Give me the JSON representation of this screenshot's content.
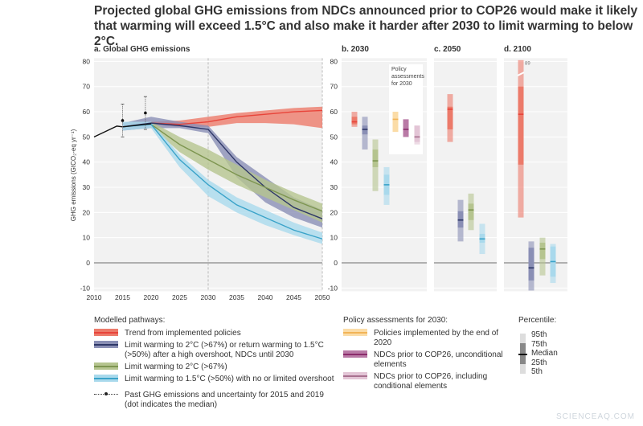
{
  "title": "Projected global GHG emissions from NDCs announced prior to COP26 would make it likely that warming will exceed 1.5°C and also make it harder after 2030 to limit warming to below 2°C.",
  "watermark": "SCIENCEAQ.COM",
  "colors": {
    "red": "#e8443a",
    "red_band": "#ec7a6a",
    "navy": "#2e3768",
    "navy_band": "#8a8fb5",
    "green": "#7d9550",
    "green_band": "#b5c48f",
    "cyan": "#3aa3c9",
    "cyan_band": "#a9d9ec",
    "yellow": "#f2b457",
    "yellow_band": "#fbdca7",
    "purple": "#8b2c6b",
    "purple_band": "#b97aa6",
    "pink": "#a8708f",
    "pink_band": "#e3c5d6"
  },
  "chart_data": [
    {
      "type": "line",
      "title": "a. Global GHG emissions",
      "ylabel": "GHG emissions (GtCO₂-eq yr⁻¹)",
      "ylim": [
        -10,
        80
      ],
      "yticks": [
        "80",
        "70",
        "60",
        "50",
        "40",
        "30",
        "20",
        "10",
        "0",
        "-10"
      ],
      "xticks": [
        "2010",
        "2015",
        "2020",
        "2025",
        "2030",
        "2035",
        "2040",
        "2045",
        "2050"
      ],
      "xlim": [
        2010,
        2050
      ],
      "grid": true,
      "historical": {
        "x": [
          2010,
          2014,
          2015,
          2019,
          2020
        ],
        "y": [
          50,
          54.3,
          54,
          55,
          55.2
        ]
      },
      "past_uncertainty": [
        {
          "year": 2015,
          "median": 56.5,
          "low": 50,
          "high": 63
        },
        {
          "year": 2019,
          "median": 59.5,
          "low": 53,
          "high": 66
        }
      ],
      "series": [
        {
          "key": "red",
          "x": [
            2020,
            2025,
            2030,
            2035,
            2040,
            2045,
            2050
          ],
          "y": [
            55.5,
            55,
            56,
            58,
            59,
            60,
            60.5
          ],
          "low": [
            55,
            54,
            54,
            55.5,
            55.5,
            55,
            53.5
          ],
          "high": [
            56,
            56.5,
            58,
            59.5,
            60.5,
            61.5,
            62
          ]
        },
        {
          "key": "navy",
          "x": [
            2015,
            2020,
            2025,
            2030,
            2035,
            2040,
            2045,
            2050
          ],
          "y": [
            54,
            55.5,
            54.5,
            53,
            40,
            30,
            22,
            17.5
          ],
          "low": [
            52.5,
            53.5,
            53.5,
            51.5,
            34,
            24,
            18,
            14
          ],
          "high": [
            55.5,
            58,
            56,
            54.5,
            42,
            34,
            26,
            21
          ]
        },
        {
          "key": "green",
          "x": [
            2020,
            2025,
            2030,
            2035,
            2040,
            2045,
            2050
          ],
          "y": [
            55,
            47,
            41,
            35,
            30,
            25,
            20.5
          ],
          "low": [
            54,
            44,
            37,
            31,
            26,
            21,
            16
          ],
          "high": [
            56,
            50,
            45,
            39,
            33,
            28,
            23.5
          ]
        },
        {
          "key": "cyan",
          "x": [
            2015,
            2020,
            2025,
            2030,
            2035,
            2040,
            2045,
            2050
          ],
          "y": [
            54,
            55,
            41,
            31,
            23,
            18,
            13,
            9.5
          ],
          "low": [
            52.5,
            53.5,
            38,
            26.5,
            20,
            15,
            11,
            7.5
          ],
          "high": [
            56,
            56,
            43,
            33,
            26,
            21,
            16,
            12
          ]
        }
      ]
    },
    {
      "type": "box",
      "title": "b. 2030",
      "inset_label": "Policy assessments for 2030",
      "bars": [
        {
          "key": "red",
          "p": [
            54,
            55,
            56,
            58,
            60
          ]
        },
        {
          "key": "navy",
          "p": [
            45,
            51,
            53,
            54.5,
            58
          ]
        },
        {
          "key": "green",
          "p": [
            28.5,
            38,
            40.5,
            45,
            49
          ]
        },
        {
          "key": "cyan",
          "p": [
            23,
            27,
            31,
            35,
            38
          ]
        },
        {
          "key": "yellow",
          "p": [
            52,
            52,
            57,
            60,
            60
          ]
        },
        {
          "key": "purple",
          "p": [
            50,
            50,
            53,
            57,
            57
          ]
        },
        {
          "key": "pink",
          "p": [
            47,
            48,
            50,
            54.5,
            54.5
          ]
        }
      ]
    },
    {
      "type": "box",
      "title": "c. 2050",
      "bars": [
        {
          "key": "red",
          "p": [
            48,
            53,
            61,
            62,
            67
          ]
        },
        {
          "key": "navy",
          "p": [
            8.5,
            14,
            17,
            20.5,
            25
          ]
        },
        {
          "key": "green",
          "p": [
            13,
            17,
            21,
            23.5,
            27.5
          ]
        },
        {
          "key": "cyan",
          "p": [
            3.5,
            8,
            9.5,
            11.5,
            15.5
          ]
        }
      ]
    },
    {
      "type": "box",
      "title": "d. 2100",
      "offscale_label": "89",
      "bars": [
        {
          "key": "red",
          "p": [
            18,
            39,
            59,
            70,
            89
          ]
        },
        {
          "key": "navy",
          "p": [
            -11,
            -7,
            -2,
            6,
            8.5
          ]
        },
        {
          "key": "green",
          "p": [
            -5,
            1.5,
            5.5,
            8,
            10
          ]
        },
        {
          "key": "cyan",
          "p": [
            -8,
            -5.5,
            0.5,
            6.5,
            7.5
          ]
        }
      ]
    }
  ],
  "legend": {
    "modelled_title": "Modelled pathways:",
    "modelled": [
      {
        "key": "red",
        "label": "Trend from implemented policies"
      },
      {
        "key": "navy",
        "label": "Limit warming to 2°C (>67%) or return warming to 1.5°C (>50%) after a high overshoot, NDCs until 2030"
      },
      {
        "key": "green",
        "label": "Limit warming to 2°C (>67%)"
      },
      {
        "key": "cyan",
        "label": "Limit warming to 1.5°C (>50%) with no or limited overshoot"
      }
    ],
    "past": "Past GHG emissions and uncertainty for 2015 and 2019 (dot indicates the median)",
    "policy_title": "Policy assessments for 2030:",
    "policy": [
      {
        "key": "yellow",
        "label": "Policies implemented by the end of 2020"
      },
      {
        "key": "purple",
        "label": "NDCs prior to COP26, unconditional elements"
      },
      {
        "key": "pink",
        "label": "NDCs prior to COP26, including conditional elements"
      }
    ],
    "percentile_title": "Percentile:",
    "percentiles": [
      "95th",
      "75th",
      "Median",
      "25th",
      "5th"
    ]
  }
}
